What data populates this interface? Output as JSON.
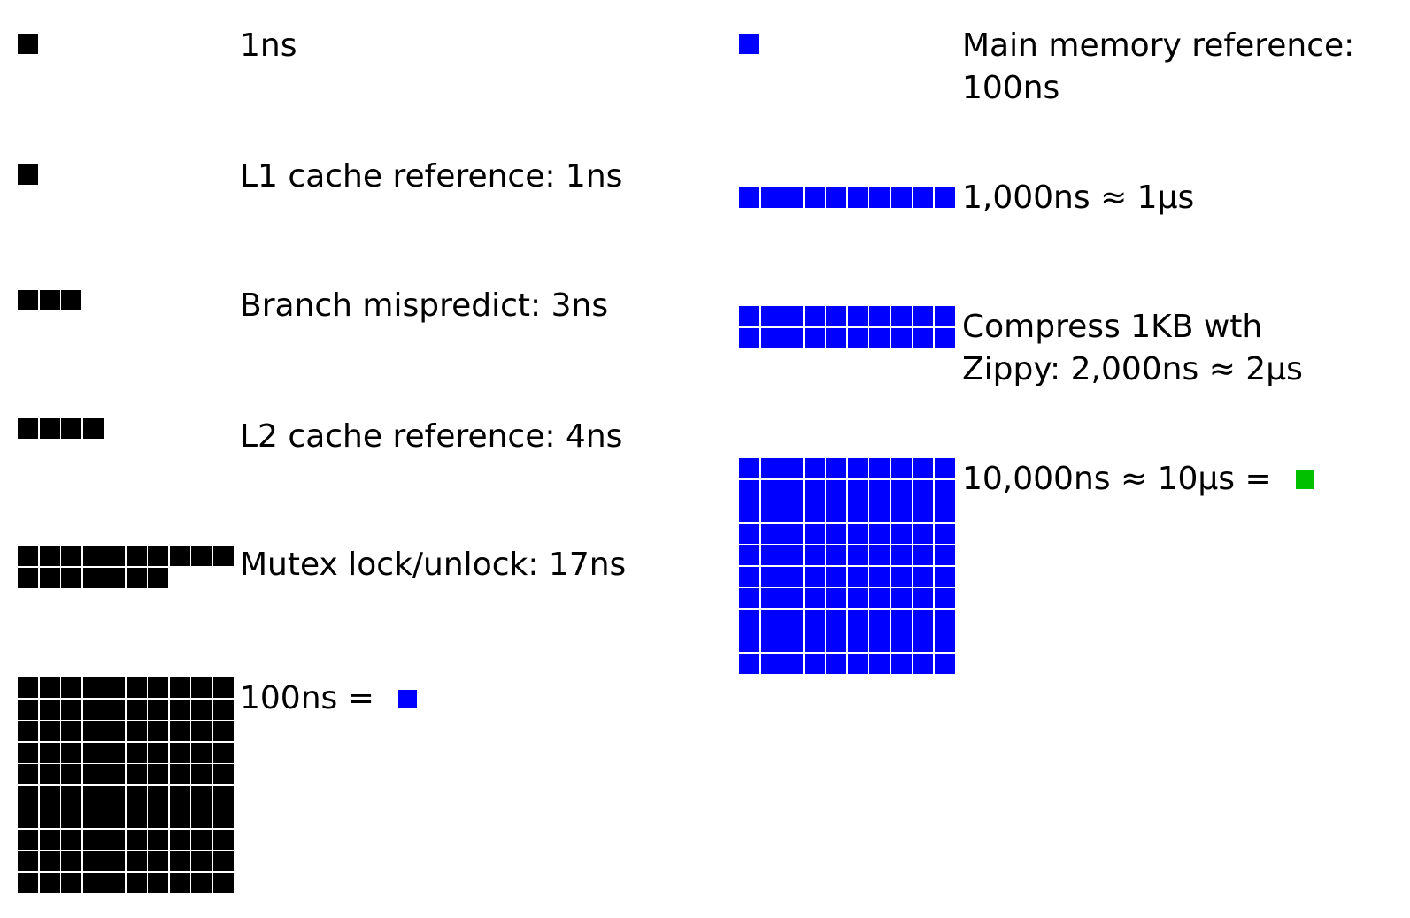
{
  "colors": {
    "ns": "#000000",
    "hundred_ns": "#0000ff",
    "ten_us": "#00c000"
  },
  "left_rows": [
    {
      "label": "1ns",
      "units": 1
    },
    {
      "label": "L1 cache reference: 1ns",
      "units": 1
    },
    {
      "label": "Branch mispredict: 3ns",
      "units": 3
    },
    {
      "label": "L2 cache reference: 4ns",
      "units": 4
    },
    {
      "label": "Mutex lock/unlock: 17ns",
      "units": 17
    },
    {
      "label": "100ns = ",
      "units": 100,
      "equals_icon": "blue-square-icon"
    }
  ],
  "right_rows": [
    {
      "label_lines": [
        "Main memory reference:",
        "100ns"
      ],
      "units": 1
    },
    {
      "label_lines": [
        "1,000ns ≈ 1μs"
      ],
      "units": 10
    },
    {
      "label_lines": [
        "Compress 1KB wth",
        "Zippy: 2,000ns ≈ 2μs"
      ],
      "units": 20
    },
    {
      "label_lines": [
        "10,000ns ≈ 10μs = "
      ],
      "units": 100,
      "equals_icon": "green-square-icon"
    }
  ]
}
